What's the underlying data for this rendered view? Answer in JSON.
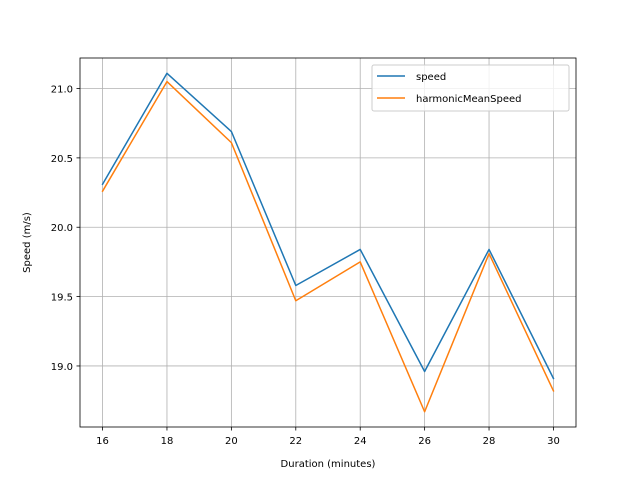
{
  "chart_data": {
    "type": "line",
    "title": "",
    "xlabel": "Duration (minutes)",
    "ylabel": "Speed (m/s)",
    "x": [
      16,
      18,
      20,
      22,
      24,
      26,
      28,
      30
    ],
    "xlim": [
      15.3,
      30.7
    ],
    "ylim": [
      18.56,
      21.22
    ],
    "xticks": [
      16,
      18,
      20,
      22,
      24,
      26,
      28,
      30
    ],
    "yticks": [
      19.0,
      19.5,
      20.0,
      20.5,
      21.0
    ],
    "ytick_labels": [
      "19.0",
      "19.5",
      "20.0",
      "20.5",
      "21.0"
    ],
    "grid": true,
    "legend_position": "top-right",
    "series": [
      {
        "name": "speed",
        "color": "#1f77b4",
        "values": [
          20.31,
          21.11,
          20.69,
          19.58,
          19.84,
          18.96,
          19.84,
          18.91
        ]
      },
      {
        "name": "harmonicMeanSpeed",
        "color": "#ff7f0e",
        "values": [
          20.26,
          21.05,
          20.61,
          19.47,
          19.75,
          18.67,
          19.81,
          18.82
        ]
      }
    ]
  }
}
